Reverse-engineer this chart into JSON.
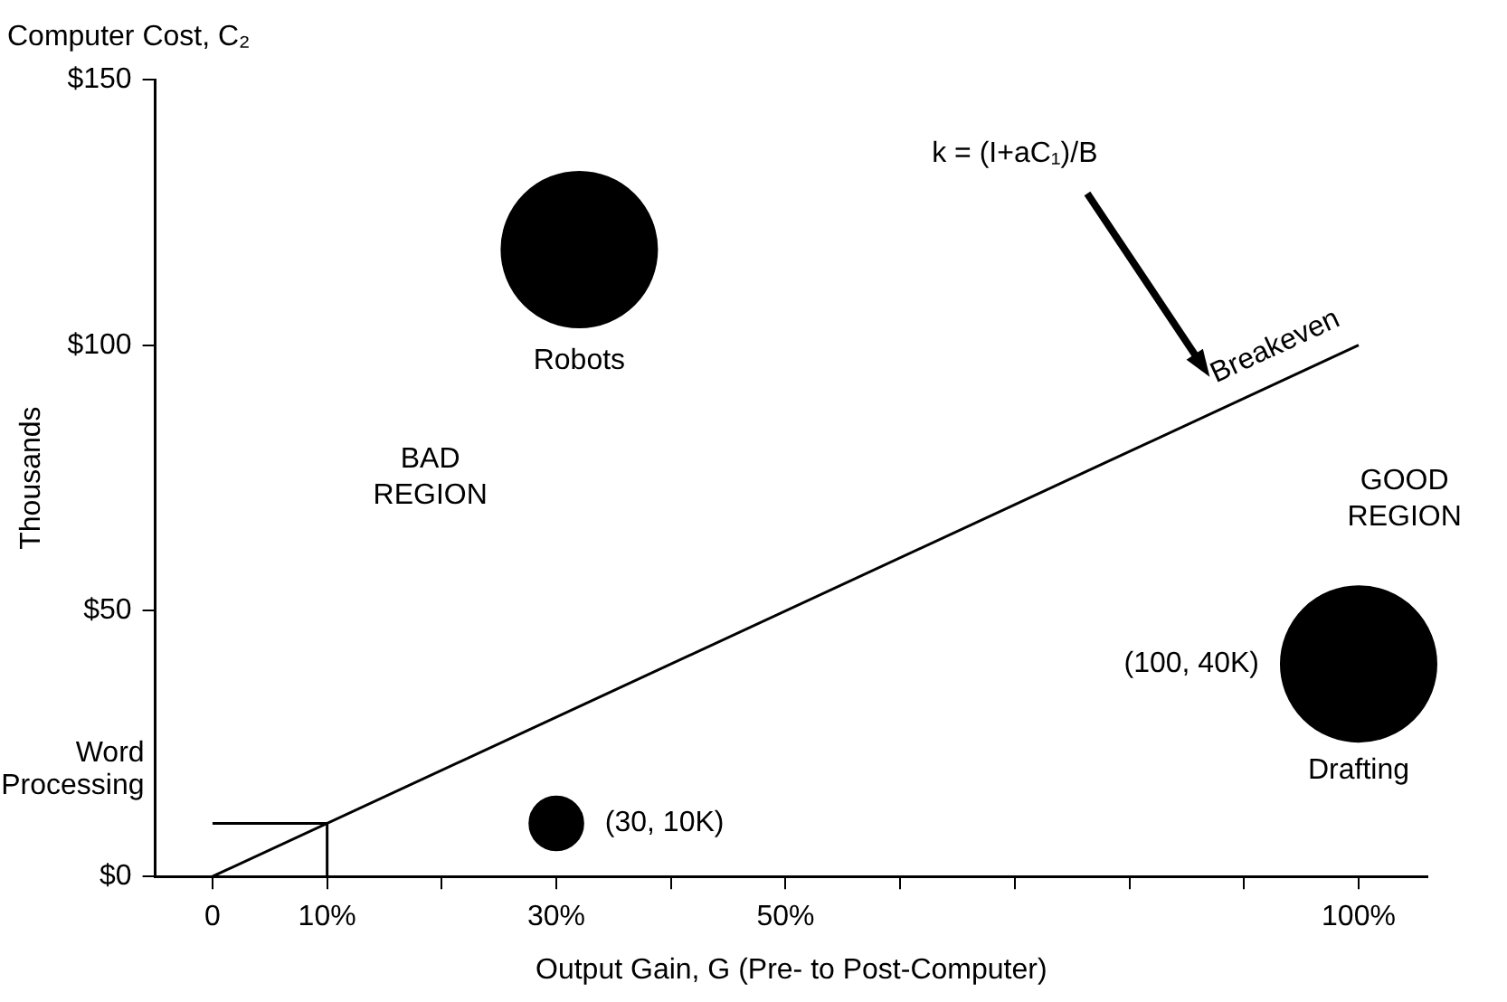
{
  "chart_data": {
    "type": "bubble",
    "title": "Computer Cost, C₂",
    "xlabel": "Output Gain, G (Pre- to Post-Computer)",
    "ylabel": "Thousands",
    "xlim": [
      -5,
      106
    ],
    "xticks": [
      0,
      {
        "value": 10,
        "label": "10%"
      },
      {
        "value": 20,
        "label": null
      },
      {
        "value": 30,
        "label": "30%"
      },
      {
        "value": 40,
        "label": null
      },
      {
        "value": 50,
        "label": "50%"
      },
      {
        "value": 60,
        "label": null
      },
      {
        "value": 70,
        "label": null
      },
      {
        "value": 80,
        "label": null
      },
      {
        "value": 90,
        "label": null
      },
      {
        "value": 100,
        "label": "100%"
      }
    ],
    "ylim": [
      0,
      150
    ],
    "yticks": [
      {
        "value": 0,
        "label": "$0"
      },
      {
        "value": 50,
        "label": "$50"
      },
      {
        "value": 100,
        "label": "$100"
      },
      {
        "value": 150,
        "label": "$150"
      }
    ],
    "grid": false,
    "series": [
      {
        "color": "#000000",
        "x": [
          32,
          30,
          100
        ],
        "values": [
          118,
          10,
          40
        ],
        "sizes": [
          1,
          0.12,
          1
        ],
        "value_labels": [
          null,
          "(30, 10K)",
          "(100, 40K)"
        ]
      },
      {
        "type": "line",
        "name": "Breakeven",
        "color": "#000000",
        "x": [
          0,
          100
        ],
        "values": [
          0,
          100
        ]
      },
      {
        "type": "line",
        "color": "#000000",
        "x": [
          0,
          10,
          10
        ],
        "values": [
          10,
          10,
          0
        ]
      }
    ],
    "annotations": [
      "Robots",
      "Drafting",
      "Word Processing",
      "BAD REGION",
      "GOOD REGION",
      "k = (I+aC₁)/B"
    ]
  }
}
